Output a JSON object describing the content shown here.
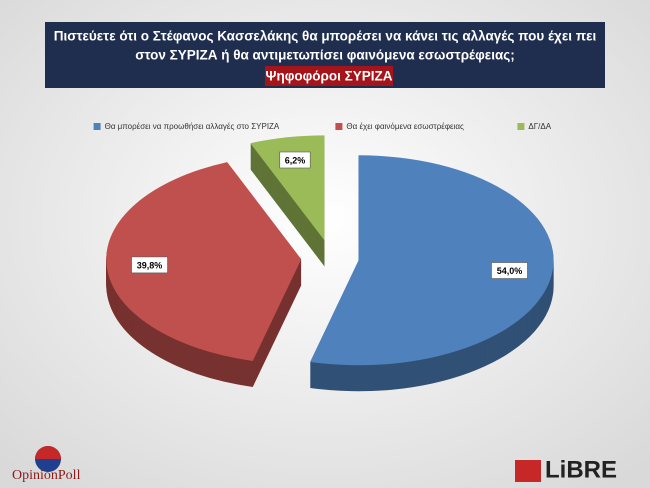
{
  "chart_data": {
    "type": "pie",
    "title_lines": [
      "Πιστεύετε ότι ο Στέφανος Κασσελάκης θα μπορέσει να κάνει τις αλλαγές που έχει πει",
      "στον ΣΥΡΙΖΑ ή θα αντιμετωπίσει φαινόμενα εσωστρέφειας;"
    ],
    "subtitle": "Ψηφοφόροι ΣΥΡΙΖΑ",
    "categories": [
      "Θα μπορέσει να προωθήσει αλλαγές στο ΣΥΡΙΖΑ",
      "Θα έχει φαινόμενα εσωστρέφειας",
      "ΔΓ/ΔΑ"
    ],
    "values": [
      54.0,
      39.8,
      6.2
    ],
    "value_labels": [
      "54,0%",
      "39,8%",
      "6,2%"
    ],
    "colors": [
      "#4f81bd",
      "#c0504d",
      "#9bbb59"
    ],
    "legend": "top"
  },
  "logos": [
    "OpinionPoll",
    "LiBRE"
  ]
}
